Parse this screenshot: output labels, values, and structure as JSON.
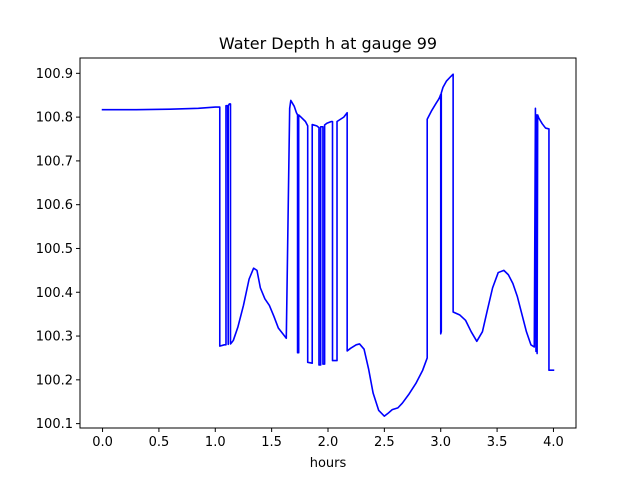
{
  "chart_data": {
    "type": "line",
    "title": "Water Depth h at gauge 99",
    "xlabel": "hours",
    "ylabel": "",
    "xlim": [
      -0.2,
      4.2
    ],
    "ylim": [
      100.09,
      100.935
    ],
    "xticks": [
      "0.0",
      "0.5",
      "1.0",
      "1.5",
      "2.0",
      "2.5",
      "3.0",
      "3.5",
      "4.0"
    ],
    "yticks": [
      "100.1",
      "100.2",
      "100.3",
      "100.4",
      "100.5",
      "100.6",
      "100.7",
      "100.8",
      "100.9"
    ],
    "grid": false,
    "legend": "none",
    "series": [
      {
        "color": "#0000ff",
        "x": [
          0.0,
          0.3,
          0.6,
          0.85,
          1.0,
          1.04,
          1.04,
          1.08,
          1.095,
          1.095,
          1.105,
          1.11,
          1.115,
          1.115,
          1.125,
          1.135,
          1.135,
          1.145,
          1.16,
          1.2,
          1.25,
          1.3,
          1.34,
          1.37,
          1.4,
          1.44,
          1.48,
          1.52,
          1.56,
          1.6,
          1.63,
          1.66,
          1.67,
          1.67,
          1.7,
          1.72,
          1.73,
          1.73,
          1.74,
          1.74,
          1.76,
          1.8,
          1.82,
          1.82,
          1.86,
          1.86,
          1.9,
          1.92,
          1.92,
          1.935,
          1.935,
          1.955,
          1.955,
          1.97,
          1.97,
          1.99,
          2.03,
          2.04,
          2.04,
          2.08,
          2.08,
          2.14,
          2.17,
          2.17,
          2.2,
          2.25,
          2.28,
          2.32,
          2.36,
          2.4,
          2.45,
          2.5,
          2.53,
          2.57,
          2.62,
          2.66,
          2.72,
          2.78,
          2.84,
          2.88,
          2.88,
          2.92,
          2.96,
          2.98,
          2.99,
          3.0,
          3.0,
          3.005,
          3.005,
          3.02,
          3.05,
          3.09,
          3.11,
          3.11,
          3.17,
          3.22,
          3.27,
          3.32,
          3.37,
          3.41,
          3.46,
          3.51,
          3.56,
          3.6,
          3.64,
          3.68,
          3.72,
          3.76,
          3.8,
          3.83,
          3.84,
          3.84,
          3.845,
          3.845,
          3.85,
          3.85,
          3.855,
          3.855,
          3.86,
          3.86,
          3.87,
          3.9,
          3.93,
          3.96,
          3.96,
          3.97,
          3.97,
          4.0
        ],
        "y": [
          100.817,
          100.817,
          100.818,
          100.82,
          100.823,
          100.823,
          100.277,
          100.28,
          100.28,
          100.826,
          100.826,
          100.826,
          100.281,
          100.826,
          100.83,
          100.83,
          100.282,
          100.285,
          100.29,
          100.32,
          100.37,
          100.43,
          100.455,
          100.45,
          100.41,
          100.385,
          100.37,
          100.345,
          100.318,
          100.305,
          100.295,
          100.82,
          100.838,
          100.838,
          100.825,
          100.81,
          100.805,
          100.262,
          100.262,
          100.805,
          100.8,
          100.79,
          100.78,
          100.24,
          100.238,
          100.783,
          100.78,
          100.776,
          100.234,
          100.234,
          100.778,
          100.778,
          100.236,
          100.236,
          100.782,
          100.786,
          100.79,
          100.79,
          100.244,
          100.244,
          100.79,
          100.8,
          100.81,
          100.266,
          100.272,
          100.28,
          100.282,
          100.27,
          100.225,
          100.17,
          100.13,
          100.117,
          100.123,
          100.132,
          100.136,
          100.147,
          100.168,
          100.192,
          100.222,
          100.25,
          100.795,
          100.815,
          100.832,
          100.84,
          100.845,
          100.852,
          100.305,
          100.31,
          100.855,
          100.868,
          100.882,
          100.893,
          100.898,
          100.355,
          100.348,
          100.336,
          100.31,
          100.288,
          100.31,
          100.355,
          100.41,
          100.445,
          100.45,
          100.44,
          100.42,
          100.39,
          100.35,
          100.31,
          100.28,
          100.275,
          100.82,
          100.82,
          100.265,
          100.265,
          100.805,
          100.805,
          100.26,
          100.26,
          100.805,
          100.805,
          100.798,
          100.785,
          100.775,
          100.773,
          100.222,
          100.222,
          100.222,
          100.222
        ]
      }
    ]
  }
}
